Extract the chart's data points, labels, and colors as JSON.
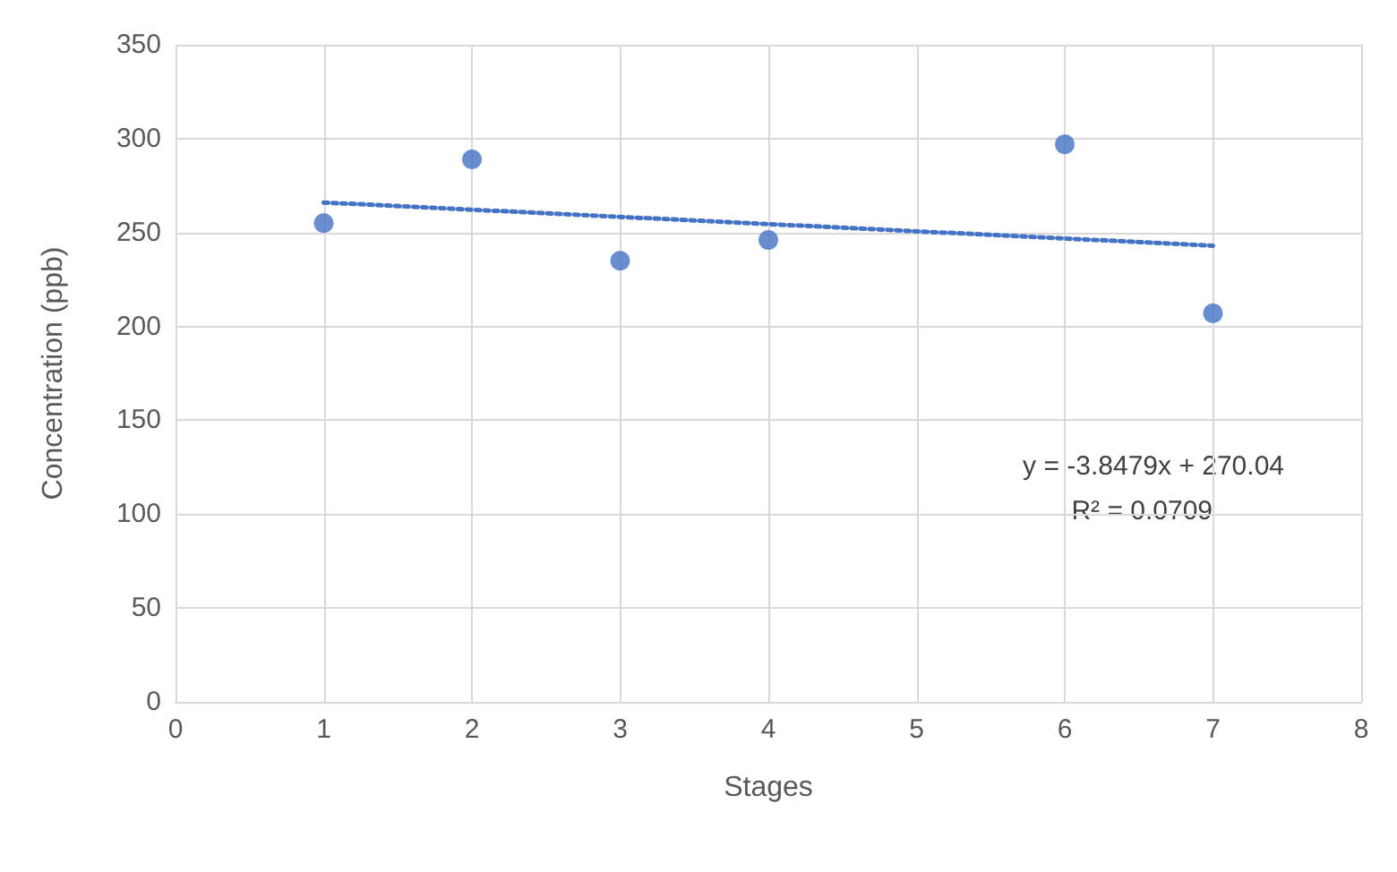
{
  "chart_data": {
    "type": "scatter",
    "xlabel": "Stages",
    "ylabel": "Concentration (ppb)",
    "xlim": [
      0,
      8
    ],
    "xticks": [
      0,
      1,
      2,
      3,
      4,
      5,
      6,
      7,
      8
    ],
    "ylim": [
      0,
      350
    ],
    "yticks": [
      0,
      50,
      100,
      150,
      200,
      250,
      300,
      350
    ],
    "grid": true,
    "marker": "circle",
    "series": [
      {
        "color": "#4472c4",
        "x": [
          1,
          2,
          3,
          4,
          6,
          7
        ],
        "values": [
          255,
          289,
          235,
          246,
          297,
          207
        ]
      },
      {
        "type": "line",
        "color": "#4472c4",
        "line_style": "dotted",
        "marker": "none",
        "x": [
          1,
          7
        ],
        "values": [
          266,
          243
        ]
      }
    ],
    "annotations": [
      "y = -3.8479x + 270.04",
      "R² = 0.0709"
    ]
  }
}
